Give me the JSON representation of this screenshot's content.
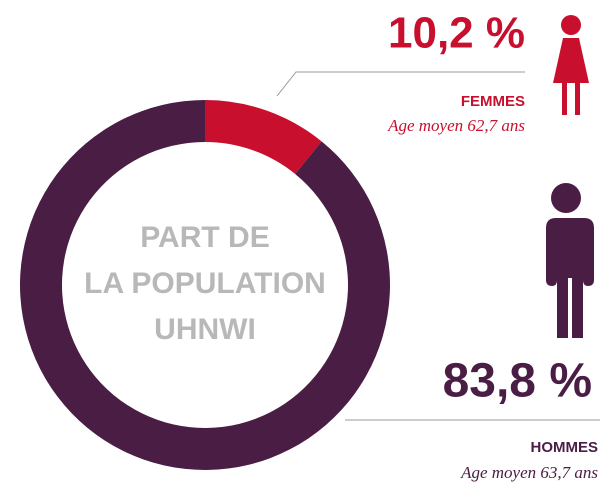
{
  "chart_data": {
    "type": "donut",
    "center_label": [
      "PART DE",
      "LA POPULATION",
      "UHNWI"
    ],
    "categories": [
      "FEMMES",
      "HOMMES"
    ],
    "values": [
      10.2,
      83.8
    ],
    "value_labels": [
      "10,2 %",
      "83,8 %"
    ],
    "annotations": [
      "Age moyen 62,7 ans",
      "Age moyen 63,7 ans"
    ],
    "colors": [
      "#c8102e",
      "#4a1d45"
    ]
  }
}
